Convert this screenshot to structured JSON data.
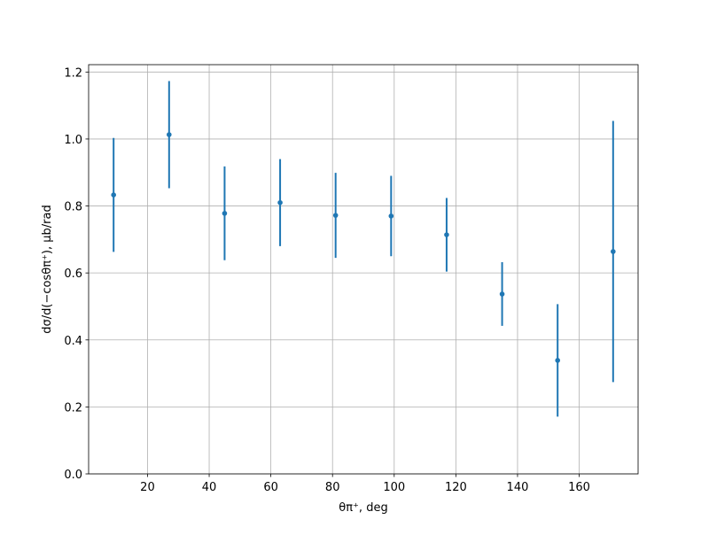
{
  "chart_data": {
    "type": "errorbar",
    "xlabel": "θπ⁺, deg",
    "ylabel": "dσ/d(−cosθπ⁺), μb/rad",
    "x": [
      9,
      27,
      45,
      63,
      81,
      99,
      117,
      135,
      153,
      171
    ],
    "series": [
      {
        "color": "#1f77b4",
        "values": [
          0.833,
          1.013,
          0.778,
          0.81,
          0.772,
          0.77,
          0.714,
          0.537,
          0.339,
          0.664
        ],
        "errors": [
          0.17,
          0.16,
          0.14,
          0.13,
          0.127,
          0.12,
          0.11,
          0.095,
          0.168,
          0.39
        ]
      }
    ],
    "xlim": [
      0.9,
      179.1
    ],
    "ylim": [
      0,
      1.222
    ],
    "xticks": [
      20,
      40,
      60,
      80,
      100,
      120,
      140,
      160
    ],
    "yticks": [
      {
        "value": 0,
        "label": "0.0"
      },
      0.2,
      0.4,
      0.6,
      0.8,
      {
        "value": 1,
        "label": "1.0"
      },
      1.2
    ],
    "grid": true
  }
}
